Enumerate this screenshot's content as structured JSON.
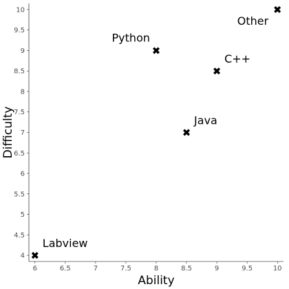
{
  "chart_data": {
    "type": "scatter",
    "xlabel": "Ability",
    "ylabel": "Difficulty",
    "xlim": [
      5.9,
      10.1
    ],
    "ylim": [
      3.85,
      10.15
    ],
    "xticks": [
      "6",
      "6.5",
      "7",
      "7.5",
      "8",
      "8.5",
      "9",
      "9.5",
      "10"
    ],
    "yticks": [
      "4",
      "4.5",
      "5",
      "5.5",
      "6",
      "6.5",
      "7",
      "7.5",
      "8",
      "8.5",
      "9",
      "9.5",
      "10"
    ],
    "grid": false,
    "marker": "x",
    "points": [
      {
        "label": "Labview",
        "x": 6,
        "y": 4,
        "label_pos": "upper-right"
      },
      {
        "label": "Java",
        "x": 8.5,
        "y": 7,
        "label_pos": "upper-right"
      },
      {
        "label": "Python",
        "x": 8,
        "y": 9,
        "label_pos": "upper-left"
      },
      {
        "label": "C++",
        "x": 9,
        "y": 8.5,
        "label_pos": "upper-right"
      },
      {
        "label": "Other",
        "x": 10,
        "y": 10,
        "label_pos": "lower-left"
      }
    ]
  }
}
